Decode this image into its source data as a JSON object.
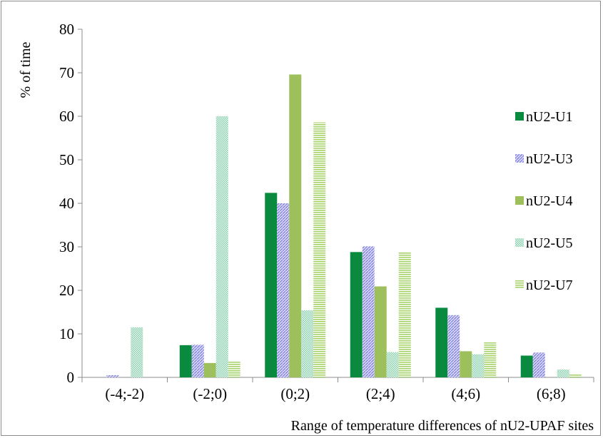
{
  "chart_data": {
    "type": "bar",
    "title": "",
    "xlabel": "Range of temperature differences of nU2-UPAF sites",
    "ylabel": "% of time",
    "ylim": [
      0,
      80
    ],
    "yticks": [
      0,
      10,
      20,
      30,
      40,
      50,
      60,
      70,
      80
    ],
    "categories": [
      "(-4;-2)",
      "(-2;0)",
      "(0;2)",
      "(2;4)",
      "(4;6)",
      "(6;8)"
    ],
    "grid": false,
    "legend_position": "right",
    "series": [
      {
        "name": "nU2-U1",
        "color": "#0a8a3e",
        "pattern": "solid",
        "values": [
          0,
          7.4,
          42.4,
          28.8,
          16,
          5
        ]
      },
      {
        "name": "nU2-U3",
        "color": "#9a9ae6",
        "pattern": "diagonal",
        "values": [
          0.5,
          7.5,
          40,
          30.1,
          14.3,
          5.7
        ]
      },
      {
        "name": "nU2-U4",
        "color": "#9dbf5c",
        "pattern": "solid",
        "values": [
          0,
          3.3,
          69.6,
          20.9,
          6,
          0
        ]
      },
      {
        "name": "nU2-U5",
        "color": "#a9dcc4",
        "pattern": "dense-dots",
        "values": [
          11.5,
          60,
          15.4,
          5.8,
          5.3,
          1.8
        ]
      },
      {
        "name": "nU2-U7",
        "color": "#bfdf8c",
        "pattern": "horizontal",
        "values": [
          0,
          3.6,
          58.6,
          28.8,
          8.1,
          0.8
        ]
      }
    ]
  }
}
